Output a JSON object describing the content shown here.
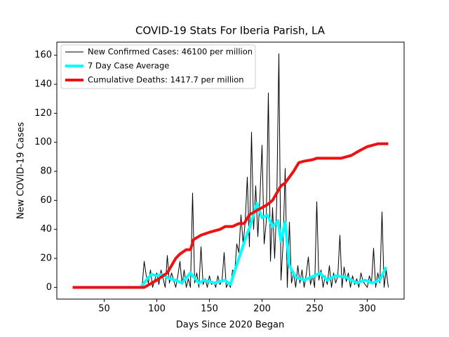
{
  "chart_data": {
    "type": "line",
    "title": "COVID-19 Stats For Iberia Parish, LA",
    "x_label": "Days Since 2020 Began",
    "y_label": "New COVID-19 Cases",
    "xlim": [
      5,
      335
    ],
    "ylim": [
      -8.05,
      169.05
    ],
    "xticks": [
      50,
      100,
      150,
      200,
      250,
      300
    ],
    "yticks": [
      0,
      20,
      40,
      60,
      80,
      100,
      120,
      140,
      160
    ],
    "legend": "upper left",
    "series": [
      {
        "name": "New Confirmed Cases: 46100 per million",
        "color": "#000000",
        "width": 1,
        "x": [
          20,
          84,
          86,
          88,
          90,
          92,
          94,
          96,
          98,
          100,
          102,
          104,
          106,
          108,
          110,
          112,
          114,
          116,
          118,
          120,
          122,
          124,
          126,
          128,
          130,
          132,
          134,
          136,
          138,
          140,
          142,
          144,
          146,
          148,
          150,
          152,
          154,
          156,
          158,
          160,
          162,
          164,
          166,
          168,
          170,
          172,
          174,
          176,
          178,
          180,
          182,
          184,
          186,
          188,
          190,
          192,
          194,
          196,
          198,
          200,
          202,
          204,
          206,
          208,
          210,
          212,
          214,
          216,
          218,
          220,
          222,
          224,
          226,
          228,
          230,
          232,
          234,
          236,
          238,
          240,
          242,
          244,
          246,
          248,
          250,
          252,
          254,
          256,
          258,
          260,
          262,
          264,
          266,
          268,
          270,
          272,
          274,
          276,
          278,
          280,
          282,
          284,
          286,
          288,
          290,
          292,
          294,
          296,
          298,
          300,
          302,
          304,
          306,
          308,
          310,
          312,
          314,
          316,
          318,
          320
        ],
        "values": [
          0,
          0,
          0,
          18,
          8,
          3,
          12,
          0,
          5,
          10,
          2,
          12,
          6,
          0,
          22,
          3,
          10,
          5,
          0,
          8,
          18,
          2,
          12,
          0,
          6,
          0,
          65,
          3,
          10,
          0,
          28,
          2,
          6,
          0,
          8,
          2,
          4,
          0,
          8,
          2,
          5,
          24,
          0,
          3,
          0,
          12,
          10,
          30,
          24,
          50,
          30,
          45,
          76,
          28,
          107,
          40,
          70,
          35,
          62,
          98,
          30,
          45,
          134,
          18,
          55,
          20,
          59,
          161,
          5,
          30,
          82,
          0,
          45,
          3,
          10,
          0,
          15,
          3,
          12,
          0,
          9,
          21,
          2,
          8,
          0,
          59,
          5,
          12,
          0,
          8,
          2,
          15,
          0,
          10,
          3,
          8,
          36,
          0,
          14,
          4,
          10,
          0,
          8,
          2,
          6,
          0,
          10,
          4,
          2,
          0,
          8,
          3,
          27,
          0,
          10,
          3,
          52,
          0,
          12,
          0
        ]
      },
      {
        "name": "7 Day Case Average",
        "color": "#00ffff",
        "width": 4,
        "x": [
          20,
          85,
          90,
          95,
          100,
          105,
          112,
          118,
          124,
          132,
          140,
          145,
          155,
          165,
          170,
          178,
          185,
          190,
          195,
          200,
          205,
          210,
          215,
          218,
          222,
          226,
          232,
          240,
          250,
          255,
          262,
          270,
          280,
          290,
          298,
          305,
          312,
          318
        ],
        "values": [
          0,
          0,
          5,
          9,
          8,
          9,
          6,
          5,
          3,
          10,
          3,
          5,
          3,
          5,
          2,
          20,
          35,
          45,
          58,
          48,
          50,
          42,
          46,
          32,
          45,
          15,
          7,
          5,
          8,
          10,
          5,
          8,
          7,
          3,
          5,
          3,
          5,
          14
        ]
      },
      {
        "name": "Cumulative Deaths: 1417.7 per million",
        "color": "#ee1111",
        "width": 4,
        "x": [
          20,
          88,
          100,
          110,
          118,
          122,
          128,
          132,
          135,
          142,
          150,
          160,
          165,
          172,
          178,
          183,
          188,
          195,
          200,
          205,
          210,
          214,
          218,
          222,
          226,
          230,
          235,
          240,
          248,
          252,
          275,
          285,
          292,
          300,
          310,
          320
        ],
        "values": [
          0,
          0,
          5,
          10,
          20,
          23,
          26,
          26,
          33,
          36,
          38,
          40,
          42,
          42,
          44,
          44,
          50,
          53,
          55,
          57,
          60,
          65,
          70,
          72,
          76,
          80,
          86,
          87,
          88,
          89,
          89,
          91,
          94,
          97,
          99,
          99
        ]
      }
    ]
  }
}
